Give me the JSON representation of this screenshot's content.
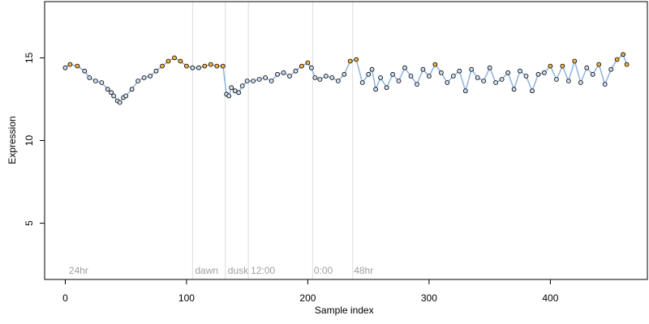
{
  "chart_data": {
    "type": "scatter",
    "title": "",
    "xlabel": "Sample index",
    "ylabel": "Expression",
    "xlim": [
      -17,
      480
    ],
    "ylim": [
      1.6,
      18.4
    ],
    "xticks": [
      0,
      100,
      200,
      300,
      400
    ],
    "yticks": [
      5,
      10,
      15
    ],
    "grid": false,
    "legend": "none",
    "annotations": [
      {
        "label": "24hr",
        "x": 3
      },
      {
        "label": "dawn",
        "x": 107
      },
      {
        "label": "dusk",
        "x": 134
      },
      {
        "label": "12:00",
        "x": 153
      },
      {
        "label": "0:00",
        "x": 205
      },
      {
        "label": "48hr",
        "x": 238
      }
    ],
    "vlines": [
      105,
      132,
      151,
      204,
      237
    ],
    "series": [
      {
        "kind": "points",
        "x": [
          0,
          4,
          10,
          16,
          20,
          25,
          30,
          35,
          38,
          40,
          43,
          45,
          48,
          50,
          55,
          60,
          65,
          70,
          75,
          80,
          85,
          90,
          95,
          100,
          105,
          110,
          115,
          120,
          125,
          130,
          133,
          135,
          137,
          140,
          143,
          146,
          150,
          155,
          160,
          165,
          170,
          175,
          180,
          185,
          190,
          195,
          200,
          203,
          206,
          210,
          215,
          220,
          225,
          230,
          235,
          240,
          245,
          250,
          253,
          256,
          260,
          265,
          270,
          275,
          280,
          285,
          290,
          295,
          300,
          305,
          310,
          315,
          320,
          325,
          330,
          335,
          340,
          345,
          350,
          355,
          360,
          365,
          370,
          375,
          380,
          385,
          390,
          395,
          400,
          405,
          410,
          415,
          420,
          425,
          430,
          435,
          440,
          445,
          450,
          455,
          460,
          463
        ],
        "y": [
          14.4,
          14.6,
          14.5,
          14.2,
          13.8,
          13.6,
          13.5,
          13.1,
          12.9,
          12.7,
          12.4,
          12.3,
          12.6,
          12.7,
          13.1,
          13.6,
          13.8,
          13.9,
          14.2,
          14.5,
          14.8,
          15.0,
          14.8,
          14.5,
          14.4,
          14.4,
          14.5,
          14.6,
          14.5,
          14.5,
          12.8,
          12.7,
          13.2,
          13.0,
          12.9,
          13.3,
          13.6,
          13.6,
          13.7,
          13.8,
          13.6,
          14.0,
          14.1,
          13.9,
          14.2,
          14.5,
          14.7,
          14.4,
          13.8,
          13.7,
          13.9,
          13.8,
          13.6,
          14.0,
          14.8,
          14.9,
          13.5,
          14.0,
          14.3,
          13.1,
          13.8,
          13.2,
          14.0,
          13.6,
          14.4,
          13.9,
          13.4,
          14.3,
          13.9,
          14.6,
          14.1,
          13.5,
          13.9,
          14.2,
          13.0,
          14.3,
          13.8,
          13.6,
          14.4,
          13.5,
          13.7,
          14.1,
          13.1,
          14.2,
          13.9,
          13.0,
          14.0,
          14.1,
          14.5,
          13.7,
          14.5,
          13.6,
          14.8,
          13.5,
          14.4,
          14.0,
          14.6,
          13.4,
          14.3,
          14.9,
          15.2,
          14.6
        ]
      }
    ]
  }
}
